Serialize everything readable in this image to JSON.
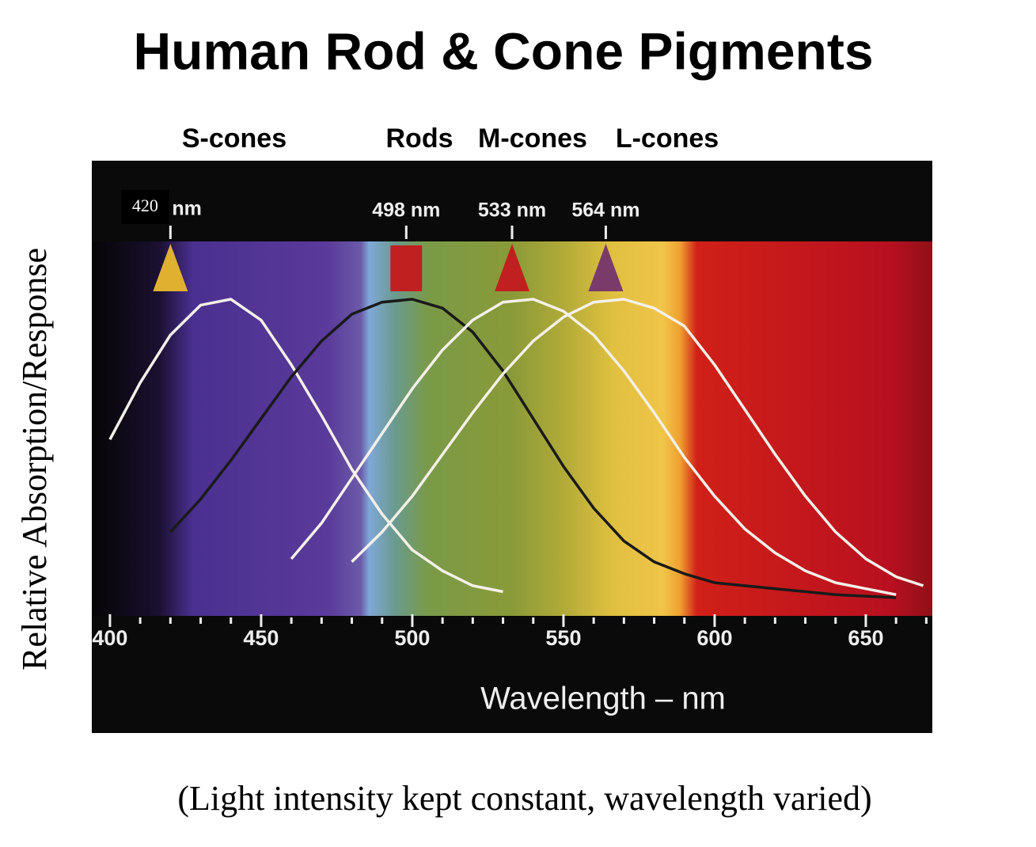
{
  "chart_data": {
    "type": "line",
    "title": "Human Rod & Cone Pigments",
    "xlabel": "Wavelength – nm",
    "ylabel": "Relative Absorption/Response",
    "caption": "(Light intensity kept constant, wavelength varied)",
    "xlim": [
      394,
      672
    ],
    "ylim": [
      0,
      1
    ],
    "xticks": [
      400,
      450,
      500,
      550,
      600,
      650
    ],
    "xticks_minor": [
      410,
      420,
      430,
      440,
      460,
      470,
      480,
      490,
      510,
      520,
      530,
      540,
      560,
      570,
      580,
      590,
      610,
      620,
      630,
      640,
      660,
      670
    ],
    "peaks": [
      {
        "value": 420,
        "label": "420",
        "suffix": "nm",
        "shape": "triangle",
        "color": "#e0b030"
      },
      {
        "value": 498,
        "label": "498 nm",
        "shape": "square",
        "color": "#c02020"
      },
      {
        "value": 533,
        "label": "533 nm",
        "shape": "triangle",
        "color": "#c02020"
      },
      {
        "value": 564,
        "label": "564 nm",
        "shape": "triangle",
        "color": "#7a3a6a"
      }
    ],
    "series": [
      {
        "name": "S-cones",
        "color": "#f4f0e8",
        "x": [
          400,
          410,
          420,
          430,
          440,
          450,
          460,
          470,
          480,
          490,
          500,
          510,
          520,
          530
        ],
        "values": [
          0.53,
          0.72,
          0.88,
          0.98,
          1.0,
          0.93,
          0.78,
          0.61,
          0.43,
          0.28,
          0.16,
          0.09,
          0.04,
          0.02
        ]
      },
      {
        "name": "Rods",
        "color": "#1a1a1a",
        "x": [
          420,
          430,
          440,
          450,
          460,
          470,
          480,
          490,
          500,
          510,
          520,
          530,
          540,
          550,
          560,
          570,
          580,
          590,
          600,
          620,
          640,
          660
        ],
        "values": [
          0.22,
          0.33,
          0.46,
          0.6,
          0.74,
          0.86,
          0.95,
          0.99,
          1.0,
          0.97,
          0.89,
          0.76,
          0.6,
          0.44,
          0.3,
          0.19,
          0.12,
          0.08,
          0.05,
          0.03,
          0.01,
          0.0
        ]
      },
      {
        "name": "M-cones",
        "color": "#f4f0e8",
        "x": [
          460,
          470,
          480,
          490,
          500,
          510,
          520,
          530,
          540,
          550,
          560,
          570,
          580,
          590,
          600,
          610,
          620,
          630,
          640,
          650,
          660
        ],
        "values": [
          0.13,
          0.25,
          0.4,
          0.55,
          0.7,
          0.83,
          0.93,
          0.99,
          1.0,
          0.96,
          0.88,
          0.76,
          0.62,
          0.47,
          0.34,
          0.23,
          0.15,
          0.09,
          0.05,
          0.03,
          0.01
        ]
      },
      {
        "name": "L-cones",
        "color": "#f4f0e8",
        "x": [
          480,
          490,
          500,
          510,
          520,
          530,
          540,
          550,
          560,
          570,
          580,
          590,
          600,
          610,
          620,
          630,
          640,
          650,
          660,
          669
        ],
        "values": [
          0.12,
          0.22,
          0.34,
          0.48,
          0.62,
          0.75,
          0.86,
          0.94,
          0.99,
          1.0,
          0.97,
          0.91,
          0.78,
          0.63,
          0.48,
          0.34,
          0.22,
          0.13,
          0.07,
          0.04
        ]
      }
    ]
  }
}
